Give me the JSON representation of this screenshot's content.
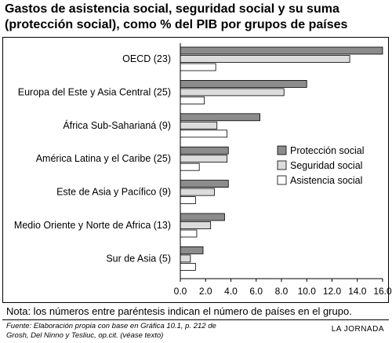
{
  "title_lines": [
    "Gastos de asistencia social, seguridad social y su suma",
    "(protección social), como % del PIB por grupos de países"
  ],
  "note": "Nota: los números entre paréntesis indican el número de países en el grupo.",
  "source_lines": [
    "Fuente: Elaboración propia con base en Gráfica 10.1, p. 212 de",
    "Grosh, Del Ninno y Tesliuc, op.cit. (véase texto)"
  ],
  "brand": "LA JORNADA",
  "chart_data": {
    "type": "bar",
    "orientation": "horizontal",
    "categories": [
      "OECD (23)",
      "Europa del Este y Asia Central (25)",
      "África Sub-Saharianá (9)",
      "América Latina y el Caribe (25)",
      "Este de Asia y Pacífico (9)",
      "Medio Oriente y Norte de Africa (13)",
      "Sur de Asia (5)"
    ],
    "series": [
      {
        "name": "Protección social",
        "color": "#8c8c8c",
        "values": [
          16.0,
          10.0,
          6.3,
          3.8,
          3.8,
          3.5,
          1.8
        ]
      },
      {
        "name": "Seguridad social",
        "color": "#dcdcdc",
        "values": [
          13.4,
          8.2,
          2.9,
          3.7,
          2.7,
          2.4,
          0.8
        ]
      },
      {
        "name": "Asistencia social",
        "color": "#ffffff",
        "values": [
          2.8,
          1.9,
          3.7,
          1.5,
          1.2,
          1.3,
          1.2
        ]
      }
    ],
    "xlim": [
      0,
      16
    ],
    "xticks": [
      "0.0",
      "2.0",
      "4.0",
      "6.0",
      "8.0",
      "10.0",
      "12.0",
      "14.0",
      "16.0"
    ],
    "legend_position": "right-middle",
    "grid": false
  }
}
